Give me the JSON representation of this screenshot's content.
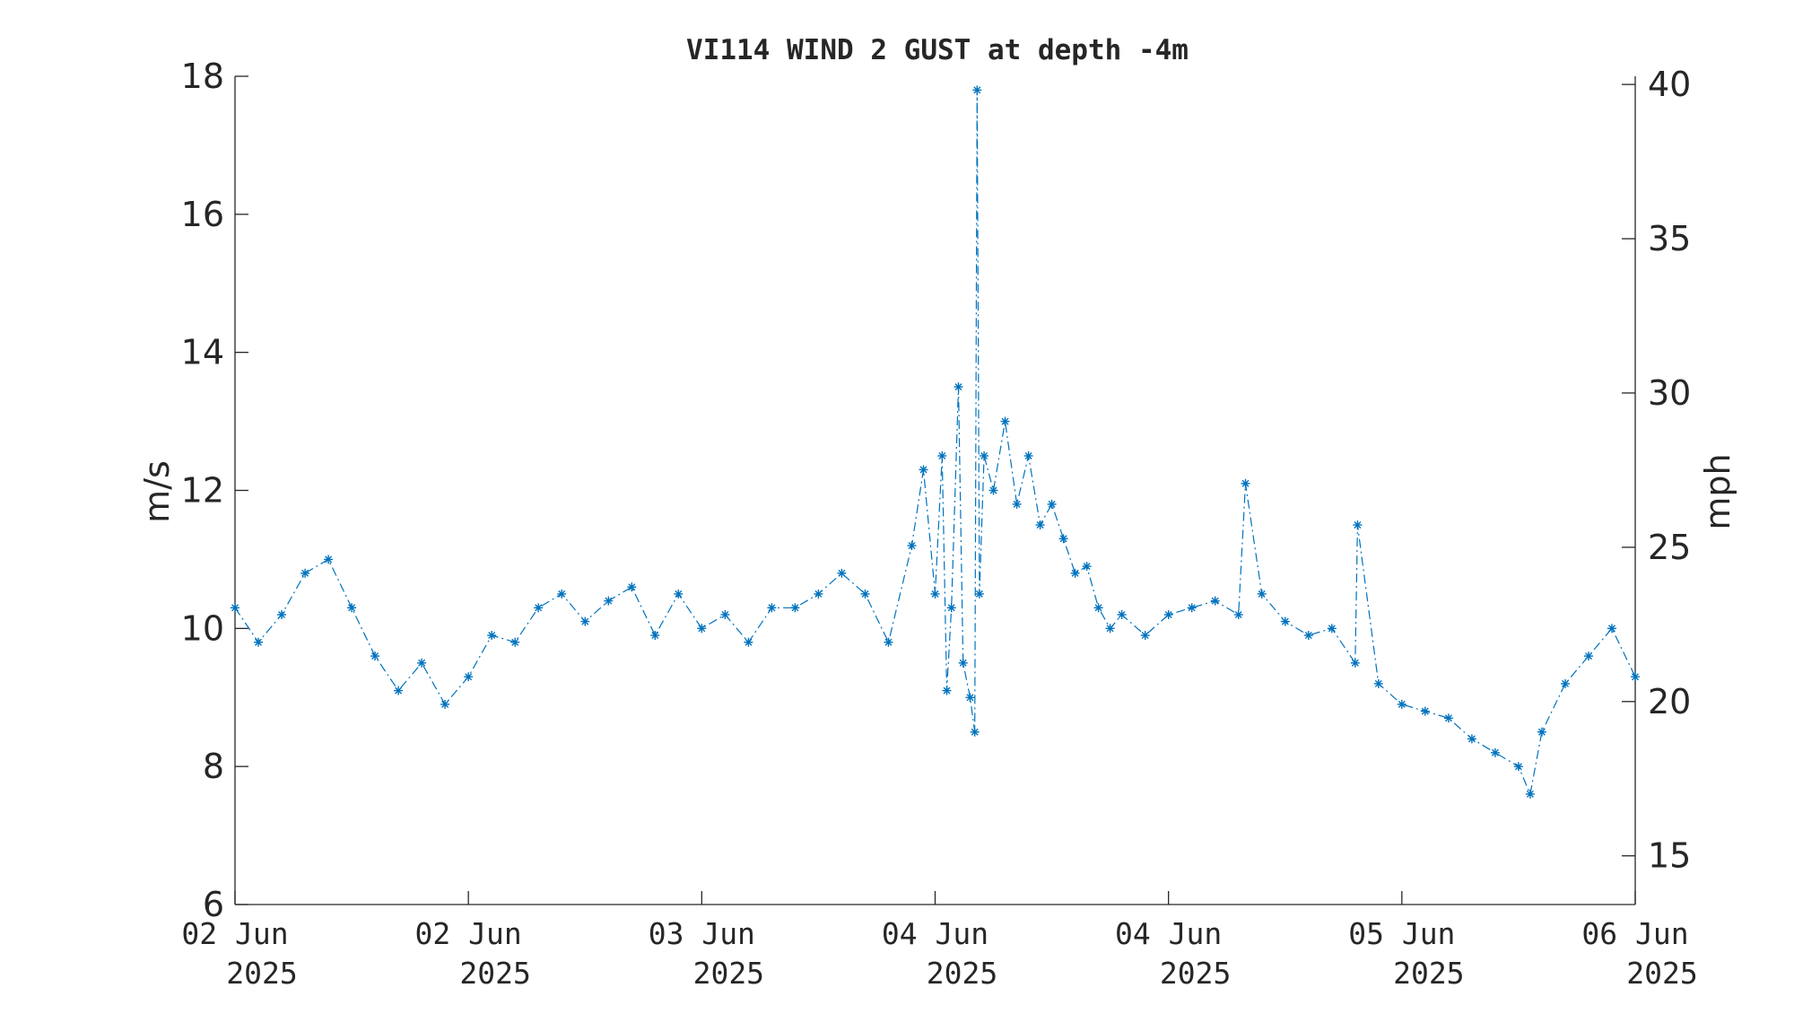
{
  "chart_data": {
    "type": "line",
    "title": "VI114 WIND 2 GUST at depth -4m",
    "ylabel": "m/s",
    "y2label": "mph",
    "ylim": [
      6,
      18
    ],
    "y2lim": [
      13.4216,
      40.2648
    ],
    "yticks": [
      6,
      8,
      10,
      12,
      14,
      16,
      18
    ],
    "y2ticks": [
      15,
      20,
      25,
      30,
      35,
      40
    ],
    "xlim": [
      0,
      6
    ],
    "xtick_values": [
      0,
      1,
      2,
      3,
      4,
      5,
      6
    ],
    "xtick_labels": [
      [
        "02 Jun",
        "2025"
      ],
      [
        "02 Jun",
        "2025"
      ],
      [
        "03 Jun",
        "2025"
      ],
      [
        "04 Jun",
        "2025"
      ],
      [
        "04 Jun",
        "2025"
      ],
      [
        "05 Jun",
        "2025"
      ],
      [
        "06 Jun",
        "2025"
      ]
    ],
    "line_style": "dash-dot",
    "marker": "asterisk",
    "series_color": "#0072BD",
    "series": [
      {
        "x": [
          0.0,
          0.1,
          0.2,
          0.3,
          0.4,
          0.5,
          0.6,
          0.7,
          0.8,
          0.9,
          1.0,
          1.1,
          1.2,
          1.3,
          1.4,
          1.5,
          1.6,
          1.7,
          1.8,
          1.9,
          2.0,
          2.1,
          2.2,
          2.3,
          2.4,
          2.5,
          2.6,
          2.7,
          2.8,
          2.9,
          2.95,
          3.0,
          3.03,
          3.05,
          3.07,
          3.1,
          3.12,
          3.15,
          3.17,
          3.18,
          3.19,
          3.21,
          3.25,
          3.3,
          3.35,
          3.4,
          3.45,
          3.5,
          3.55,
          3.6,
          3.65,
          3.7,
          3.75,
          3.8,
          3.9,
          4.0,
          4.1,
          4.2,
          4.3,
          4.33,
          4.4,
          4.5,
          4.6,
          4.7,
          4.8,
          4.81,
          4.9,
          5.0,
          5.1,
          5.2,
          5.3,
          5.4,
          5.5,
          5.55,
          5.6,
          5.7,
          5.8,
          5.9,
          6.0
        ],
        "values": [
          10.3,
          9.8,
          10.2,
          10.8,
          11.0,
          10.3,
          9.6,
          9.1,
          9.5,
          8.9,
          9.3,
          9.9,
          9.8,
          10.3,
          10.5,
          10.1,
          10.4,
          10.6,
          9.9,
          10.5,
          10.0,
          10.2,
          9.8,
          10.3,
          10.3,
          10.5,
          10.8,
          10.5,
          9.8,
          11.2,
          12.3,
          10.5,
          12.5,
          9.1,
          10.3,
          13.5,
          9.5,
          9.0,
          8.5,
          17.8,
          10.5,
          12.5,
          12.0,
          13.0,
          11.8,
          12.5,
          11.5,
          11.8,
          11.3,
          10.8,
          10.9,
          10.3,
          10.0,
          10.2,
          9.9,
          10.2,
          10.3,
          10.4,
          10.2,
          12.1,
          10.5,
          10.1,
          9.9,
          10.0,
          9.5,
          11.5,
          9.2,
          8.9,
          8.8,
          8.7,
          8.4,
          8.2,
          8.0,
          7.6,
          8.5,
          9.2,
          9.6,
          10.0,
          9.3
        ]
      }
    ]
  }
}
